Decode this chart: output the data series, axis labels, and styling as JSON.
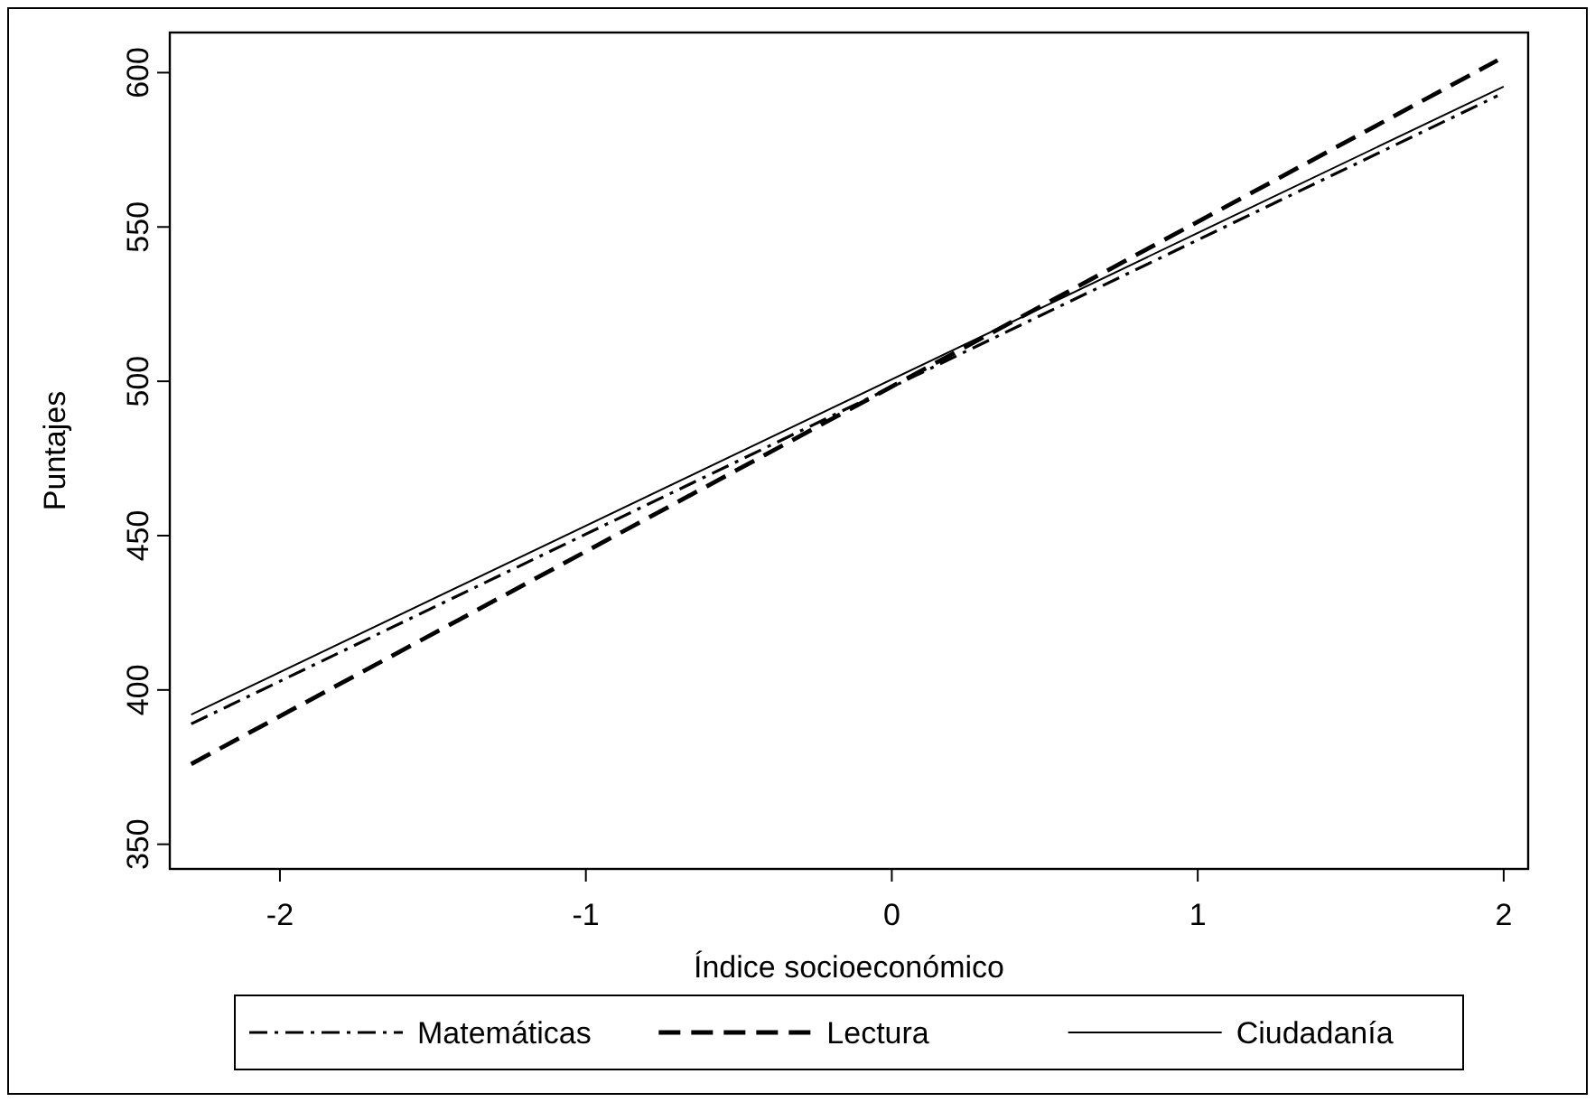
{
  "chart_data": {
    "type": "line",
    "xlabel": "Índice socioeconómico",
    "ylabel": "Puntajes",
    "xlim": [
      -2.36,
      2.08
    ],
    "xticks": [
      -2,
      -1,
      0,
      1,
      2
    ],
    "ylim": [
      342,
      613
    ],
    "yticks": [
      350,
      400,
      450,
      500,
      550,
      600
    ],
    "grid": false,
    "legend": "bottom",
    "marker": "none",
    "series": [
      {
        "name": "Matemáticas",
        "color": "#000000",
        "line_style": "dashdot",
        "x": [
          -2.29,
          1.98
        ],
        "values": [
          389,
          592.5
        ]
      },
      {
        "name": "Lectura",
        "color": "#000000",
        "line_style": "dashed",
        "x": [
          -2.29,
          1.98
        ],
        "values": [
          376,
          604
        ]
      },
      {
        "name": "Ciudadanía",
        "color": "#000000",
        "line_style": "solid",
        "x": [
          -2.29,
          2.0
        ],
        "values": [
          392,
          595.5
        ]
      }
    ]
  }
}
